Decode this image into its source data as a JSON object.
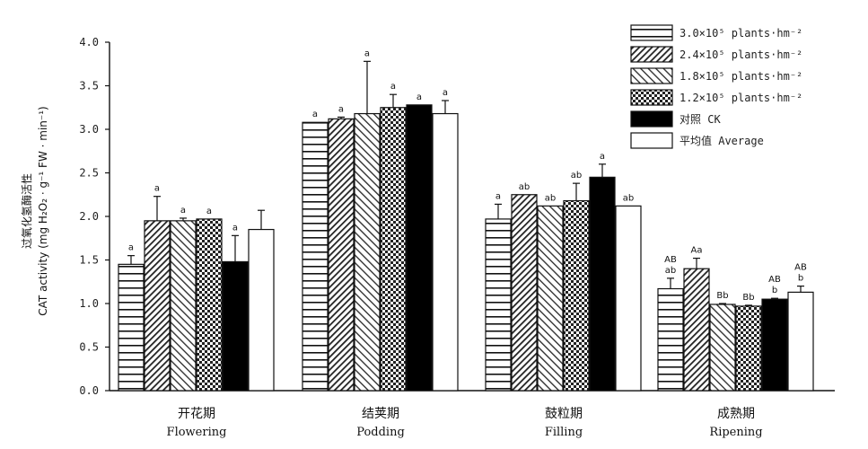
{
  "chart_data": {
    "type": "bar",
    "title": "",
    "ylabel_cn": "过氧化氢酶活性",
    "ylabel_en": "CAT activity (mg H₂O₂ · g⁻¹ FW · min⁻¹)",
    "y_ticks": [
      "4.0",
      "3.5",
      "3.0",
      "2.5",
      "2.0",
      "1.5",
      "1.0",
      "0.5",
      "0.0"
    ],
    "ylim": [
      0,
      4.0
    ],
    "grid": false,
    "legend_position": "top-right",
    "categories": [
      {
        "cn": "开花期",
        "en": "Flowering"
      },
      {
        "cn": "结荚期",
        "en": "Podding"
      },
      {
        "cn": "鼓粒期",
        "en": "Filling"
      },
      {
        "cn": "成熟期",
        "en": "Ripening"
      }
    ],
    "series": [
      {
        "name": "3.0×10⁵ plants·hm⁻²",
        "pattern": "hlines",
        "values": [
          1.45,
          3.08,
          1.97,
          1.17
        ],
        "errors": [
          0.1,
          0.0,
          0.17,
          0.12
        ],
        "labels": [
          "a",
          "a",
          "a",
          "AB\nab"
        ]
      },
      {
        "name": "2.4×10⁵ plants·hm⁻²",
        "pattern": "dense-hatch",
        "values": [
          1.95,
          3.12,
          2.25,
          1.4
        ],
        "errors": [
          0.28,
          0.02,
          0.0,
          0.12
        ],
        "labels": [
          "a",
          "a",
          "ab",
          "Aa"
        ]
      },
      {
        "name": "1.8×10⁵ plants·hm⁻²",
        "pattern": "diag-hatch",
        "values": [
          1.95,
          3.18,
          2.12,
          0.99
        ],
        "errors": [
          0.03,
          0.6,
          0.0,
          0.01
        ],
        "labels": [
          "a",
          "a",
          "ab",
          "Bb"
        ]
      },
      {
        "name": "1.2×10⁵ plants·hm⁻²",
        "pattern": "checker",
        "values": [
          1.97,
          3.25,
          2.18,
          0.97
        ],
        "errors": [
          0.0,
          0.15,
          0.2,
          0.01
        ],
        "labels": [
          "a",
          "a",
          "ab",
          "Bb"
        ]
      },
      {
        "name": "对照 CK",
        "pattern": "solid-black",
        "values": [
          1.48,
          3.28,
          2.45,
          1.05
        ],
        "errors": [
          0.3,
          0.0,
          0.15,
          0.01
        ],
        "labels": [
          "a",
          "a",
          "a",
          "AB\nb"
        ]
      },
      {
        "name": "平均值 Average",
        "pattern": "white",
        "values": [
          1.85,
          3.18,
          2.12,
          1.13
        ],
        "errors": [
          0.22,
          0.15,
          0.0,
          0.07
        ],
        "labels": [
          "",
          "a",
          "ab",
          "AB\nb"
        ]
      }
    ]
  }
}
